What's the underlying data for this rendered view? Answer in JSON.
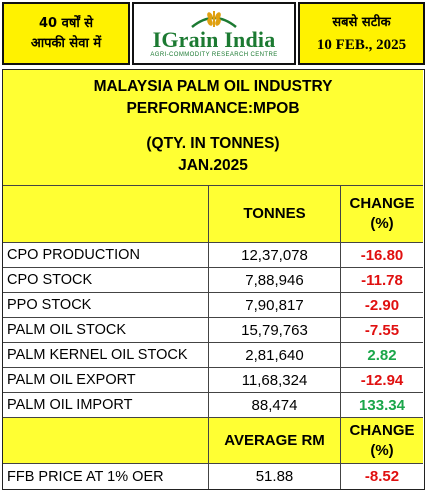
{
  "header": {
    "left_line1": "40 वर्षों से",
    "left_line2": "आपकी सेवा में",
    "logo_name": "IGrain India",
    "logo_tagline": "AGRI-COMMODITY RESEARCH CENTRE",
    "right_line1": "सबसे सटीक",
    "date": "10 FEB., 2025"
  },
  "title": {
    "line1": "MALAYSIA PALM OIL INDUSTRY",
    "line2": "PERFORMANCE:MPOB",
    "line3": "(QTY. IN TONNES)",
    "line4": "JAN.2025"
  },
  "table_header": {
    "col2": "TONNES",
    "col3_line1": "CHANGE",
    "col3_line2": "(%)"
  },
  "rows": [
    {
      "label": "CPO PRODUCTION",
      "tonnes": "12,37,078",
      "change": "-16.80",
      "tone": "red"
    },
    {
      "label": "CPO STOCK",
      "tonnes": "7,88,946",
      "change": "-11.78",
      "tone": "red"
    },
    {
      "label": "PPO STOCK",
      "tonnes": "7,90,817",
      "change": "-2.90",
      "tone": "red"
    },
    {
      "label": "PALM OIL STOCK",
      "tonnes": "15,79,763",
      "change": "-7.55",
      "tone": "red"
    },
    {
      "label": "PALM KERNEL OIL STOCK",
      "tonnes": "2,81,640",
      "change": "2.82",
      "tone": "green"
    },
    {
      "label": "PALM OIL EXPORT",
      "tonnes": "11,68,324",
      "change": "-12.94",
      "tone": "red"
    },
    {
      "label": "PALM OIL IMPORT",
      "tonnes": "88,474",
      "change": "133.34",
      "tone": "green"
    }
  ],
  "price_header": {
    "col2": "AVERAGE RM",
    "col3_line1": "CHANGE",
    "col3_line2": "(%)"
  },
  "price_row": {
    "label": "FFB PRICE AT 1% OER",
    "value": "51.88",
    "change": "-8.52",
    "tone": "red"
  },
  "colors": {
    "header_yellow": "#fff200",
    "table_yellow": "#ffff33",
    "negative": "#e01010",
    "positive": "#1aa64a",
    "logo_green": "#1c7a32"
  }
}
